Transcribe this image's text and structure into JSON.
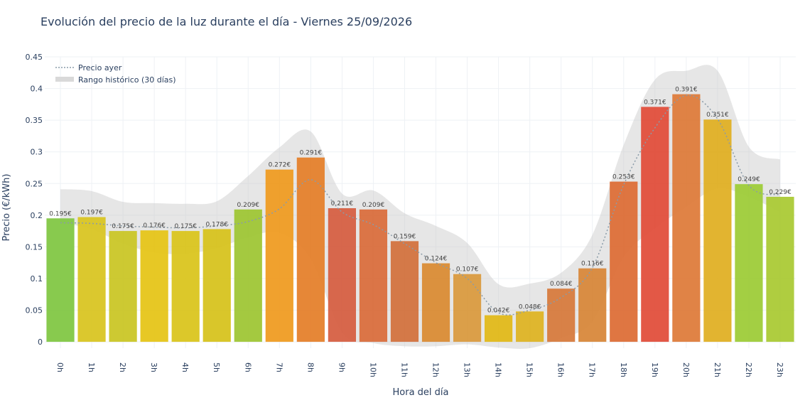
{
  "chart_data": {
    "type": "bar",
    "title": "Evolución del precio de la luz durante el día - Viernes 25/09/2026",
    "xlabel": "Hora del día",
    "ylabel": "Precio (€/kWh)",
    "ylim": [
      -0.01,
      0.45
    ],
    "yticks": [
      0,
      0.05,
      0.1,
      0.15,
      0.2,
      0.25,
      0.3,
      0.35,
      0.4,
      0.45
    ],
    "ytick_labels": [
      "0",
      "0.05",
      "0.1",
      "0.15",
      "0.2",
      "0.25",
      "0.3",
      "0.35",
      "0.4",
      "0.45"
    ],
    "categories": [
      "0h",
      "1h",
      "2h",
      "3h",
      "4h",
      "5h",
      "6h",
      "7h",
      "8h",
      "9h",
      "10h",
      "11h",
      "12h",
      "13h",
      "14h",
      "15h",
      "16h",
      "17h",
      "18h",
      "19h",
      "20h",
      "21h",
      "22h",
      "23h"
    ],
    "values": [
      0.195,
      0.197,
      0.175,
      0.176,
      0.175,
      0.178,
      0.209,
      0.272,
      0.291,
      0.211,
      0.209,
      0.159,
      0.124,
      0.107,
      0.042,
      0.048,
      0.084,
      0.116,
      0.253,
      0.371,
      0.391,
      0.351,
      0.249,
      0.229
    ],
    "data_labels": [
      "0.195€",
      "0.197€",
      "0.175€",
      "0.176€",
      "0.175€",
      "0.178€",
      "0.209€",
      "0.272€",
      "0.291€",
      "0.211€",
      "0.209€",
      "0.159€",
      "0.124€",
      "0.107€",
      "0.042€",
      "0.048€",
      "0.084€",
      "0.116€",
      "0.253€",
      "0.371€",
      "0.391€",
      "0.351€",
      "0.249€",
      "0.229€"
    ],
    "bar_colors": [
      "#7fc641",
      "#d8c41e",
      "#c9c522",
      "#e5c414",
      "#d9c41a",
      "#d6c21a",
      "#9dc531",
      "#ef9a1e",
      "#e47e28",
      "#d55c3f",
      "#d96c3a",
      "#d2703b",
      "#d98a30",
      "#d9993c",
      "#e1b815",
      "#deb320",
      "#d6793a",
      "#d78537",
      "#dd6c34",
      "#e14b38",
      "#de7a38",
      "#e0ae20",
      "#9ccb35",
      "#a9c932"
    ],
    "series": [
      {
        "name": "Precio ayer",
        "type": "line",
        "style": "dotted",
        "color": "#8a9ba8",
        "values": [
          0.188,
          0.187,
          0.183,
          0.181,
          0.18,
          0.183,
          0.19,
          0.21,
          0.256,
          0.205,
          0.185,
          0.155,
          0.125,
          0.1,
          0.046,
          0.05,
          0.07,
          0.117,
          0.248,
          0.338,
          0.389,
          0.352,
          0.247,
          0.232
        ]
      },
      {
        "name": "Rango histórico (30 días)",
        "type": "band",
        "color": "#c8c8c8",
        "upper": [
          0.241,
          0.238,
          0.221,
          0.219,
          0.218,
          0.222,
          0.262,
          0.307,
          0.332,
          0.234,
          0.239,
          0.203,
          0.183,
          0.156,
          0.091,
          0.092,
          0.109,
          0.169,
          0.311,
          0.414,
          0.428,
          0.428,
          0.308,
          0.288
        ],
        "lower": [
          0.188,
          0.178,
          0.155,
          0.141,
          0.139,
          0.148,
          0.165,
          0.172,
          0.131,
          0.015,
          -0.002,
          -0.007,
          -0.007,
          -0.004,
          -0.009,
          -0.01,
          0.006,
          0.032,
          0.134,
          0.179,
          0.213,
          0.242,
          0.229,
          0.205
        ]
      }
    ],
    "legend": {
      "placement": "top-left",
      "entries": [
        "Precio ayer",
        "Rango histórico (30 días)"
      ]
    },
    "grid": true
  }
}
